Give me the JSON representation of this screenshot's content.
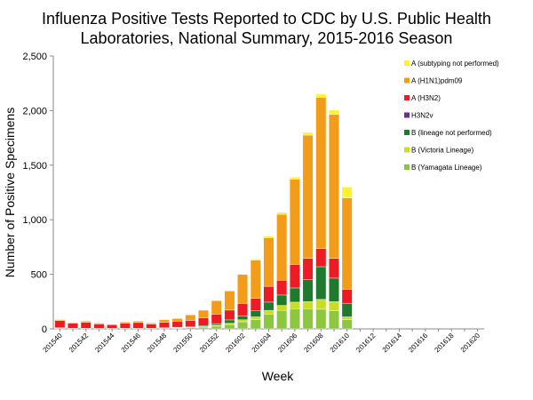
{
  "chart_data": {
    "type": "bar",
    "stacked": true,
    "title": "Influenza Positive Tests Reported to CDC by U.S. Public Health\nLaboratories, National Summary, 2015-2016 Season",
    "xlabel": "Week",
    "ylabel": "Number of Positive Specimens",
    "ylim": [
      0,
      2500
    ],
    "yticks": [
      0,
      500,
      1000,
      1500,
      2000,
      2500
    ],
    "ytick_labels": [
      "0",
      "500",
      "1,000",
      "1,500",
      "2,000",
      "2,500"
    ],
    "categories": [
      "201540",
      "201541",
      "201542",
      "201543",
      "201544",
      "201545",
      "201546",
      "201547",
      "201548",
      "201549",
      "201550",
      "201551",
      "201552",
      "201601",
      "201602",
      "201603",
      "201604",
      "201605",
      "201606",
      "201607",
      "201608",
      "201609",
      "201610",
      "201611",
      "201612",
      "201613",
      "201614",
      "201615",
      "201616",
      "201617",
      "201618",
      "201619",
      "201620"
    ],
    "xtick_labels": [
      "201540",
      "201542",
      "201544",
      "201546",
      "201548",
      "201550",
      "201552",
      "201602",
      "201604",
      "201606",
      "201608",
      "201610",
      "201612",
      "201614",
      "201616",
      "201618",
      "201620"
    ],
    "legend_position": "top-right",
    "grid": false,
    "series": [
      {
        "name": "B (Yamagata Lineage)",
        "color": "#8dc63f",
        "values": [
          5,
          3,
          3,
          2,
          2,
          3,
          3,
          3,
          5,
          7,
          10,
          15,
          25,
          40,
          65,
          85,
          135,
          170,
          185,
          185,
          180,
          165,
          85,
          0,
          0,
          0,
          0,
          0,
          0,
          0,
          0,
          0,
          0
        ]
      },
      {
        "name": "B (Victoria Lineage)",
        "color": "#c8dc28",
        "values": [
          2,
          1,
          1,
          1,
          1,
          1,
          1,
          1,
          2,
          3,
          5,
          6,
          8,
          12,
          18,
          25,
          35,
          45,
          60,
          65,
          90,
          85,
          25,
          0,
          0,
          0,
          0,
          0,
          0,
          0,
          0,
          0,
          0
        ]
      },
      {
        "name": "B (lineage not performed)",
        "color": "#1f7a2e",
        "values": [
          3,
          2,
          2,
          2,
          2,
          2,
          2,
          2,
          3,
          5,
          8,
          10,
          15,
          30,
          35,
          55,
          75,
          95,
          130,
          200,
          300,
          215,
          125,
          0,
          0,
          0,
          0,
          0,
          0,
          0,
          0,
          0,
          0
        ]
      },
      {
        "name": "H3N2v",
        "color": "#6a2c91",
        "values": [
          0,
          0,
          0,
          0,
          0,
          0,
          0,
          0,
          0,
          0,
          0,
          0,
          0,
          0,
          0,
          0,
          0,
          0,
          0,
          0,
          0,
          0,
          0,
          0,
          0,
          0,
          0,
          0,
          0,
          0,
          0,
          0,
          0
        ]
      },
      {
        "name": "A (H3N2)",
        "color": "#ed1c24",
        "values": [
          65,
          47,
          53,
          40,
          33,
          45,
          52,
          38,
          50,
          55,
          55,
          70,
          85,
          90,
          115,
          115,
          145,
          135,
          215,
          195,
          165,
          180,
          125,
          0,
          0,
          0,
          0,
          0,
          0,
          0,
          0,
          0,
          0
        ]
      },
      {
        "name": "A (H1N1)pdm09",
        "color": "#f39c1a",
        "values": [
          10,
          5,
          12,
          8,
          5,
          12,
          13,
          10,
          25,
          25,
          50,
          70,
          125,
          175,
          265,
          350,
          445,
          605,
          780,
          1130,
          1385,
          1320,
          840,
          0,
          0,
          0,
          0,
          0,
          0,
          0,
          0,
          0,
          0
        ]
      },
      {
        "name": "A (subtyping not performed)",
        "color": "#fff233",
        "values": [
          0,
          0,
          0,
          0,
          0,
          0,
          0,
          0,
          0,
          0,
          0,
          0,
          0,
          0,
          0,
          10,
          15,
          18,
          20,
          25,
          30,
          40,
          100,
          0,
          0,
          0,
          0,
          0,
          0,
          0,
          0,
          0,
          0
        ]
      }
    ]
  }
}
